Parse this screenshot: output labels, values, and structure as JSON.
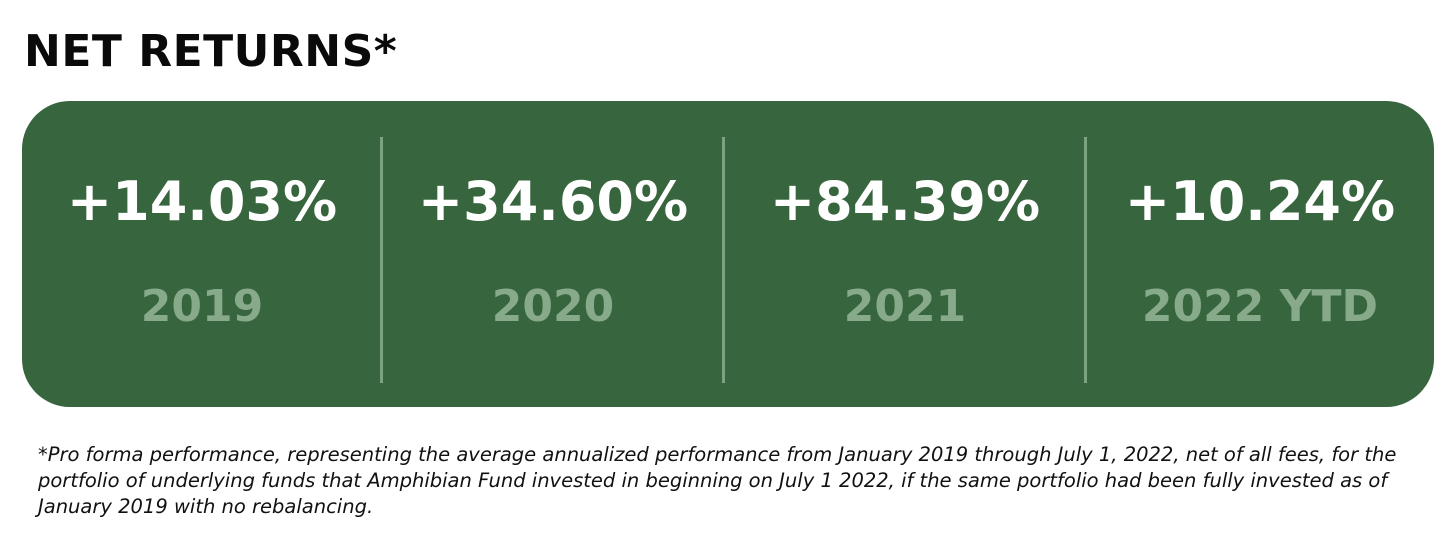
{
  "title": "NET RETURNS*",
  "returns": [
    {
      "value": "+14.03%",
      "label": "2019"
    },
    {
      "value": "+34.60%",
      "label": "2020"
    },
    {
      "value": "+84.39%",
      "label": "2021"
    },
    {
      "value": "+10.24%",
      "label": "2022 YTD"
    }
  ],
  "footnote": "*Pro forma performance, representing the average annualized performance from January 2019 through July 1, 2022, net of all fees, for the portfolio of underlying funds that Amphibian Fund invested in beginning on July 1 2022, if the same portfolio had been fully invested as of January 2019 with no rebalancing.",
  "colors": {
    "panel": "#37653d",
    "value_text": "#ffffff",
    "year_text": "#87aa8a",
    "divider": "#7ba27f"
  }
}
